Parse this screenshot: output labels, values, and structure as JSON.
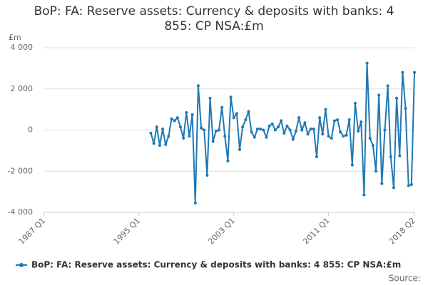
{
  "chart_data": {
    "type": "line",
    "title": "BoP: FA: Reserve assets: Currency & deposits with banks: 4 855: CP NSA:£m",
    "y_axis_label": "£m",
    "source": "Source:",
    "categories": [
      "1987 Q1",
      null,
      null,
      null,
      null,
      null,
      null,
      null,
      null,
      null,
      null,
      null,
      null,
      null,
      null,
      null,
      null,
      null,
      null,
      null,
      null,
      null,
      null,
      null,
      null,
      null,
      null,
      null,
      null,
      null,
      null,
      null,
      "1995 Q1",
      null,
      null,
      null,
      null,
      null,
      null,
      null,
      null,
      null,
      null,
      null,
      null,
      null,
      null,
      null,
      null,
      null,
      null,
      null,
      null,
      null,
      null,
      null,
      null,
      null,
      null,
      null,
      null,
      null,
      null,
      null,
      "2003 Q1",
      null,
      null,
      null,
      null,
      null,
      null,
      null,
      null,
      null,
      null,
      null,
      null,
      null,
      null,
      null,
      null,
      null,
      null,
      null,
      null,
      null,
      null,
      null,
      null,
      null,
      null,
      null,
      null,
      null,
      null,
      null,
      "2011 Q1",
      null,
      null,
      null,
      null,
      null,
      null,
      null,
      null,
      null,
      null,
      null,
      null,
      null,
      null,
      null,
      null,
      null,
      null,
      null,
      null,
      null,
      null,
      null,
      null,
      null,
      null,
      null,
      null,
      "2018 Q2"
    ],
    "series": [
      {
        "name": "BoP: FA: Reserve assets: Currency & deposits with banks: 4 855: CP NSA:£m",
        "color": "#1f78b4",
        "values": [
          null,
          null,
          null,
          null,
          null,
          null,
          null,
          null,
          null,
          null,
          null,
          null,
          null,
          null,
          null,
          null,
          null,
          null,
          null,
          null,
          null,
          null,
          null,
          null,
          null,
          null,
          null,
          null,
          null,
          null,
          null,
          null,
          null,
          null,
          null,
          null,
          -150,
          -650,
          150,
          -750,
          50,
          -700,
          -300,
          550,
          450,
          600,
          150,
          -400,
          850,
          -300,
          750,
          -3550,
          2150,
          100,
          0,
          -2200,
          1550,
          -550,
          -50,
          0,
          1100,
          -300,
          -1500,
          1600,
          600,
          800,
          -950,
          150,
          500,
          900,
          -100,
          -350,
          50,
          50,
          0,
          -350,
          200,
          300,
          0,
          150,
          450,
          -150,
          200,
          0,
          -450,
          -50,
          600,
          0,
          350,
          -200,
          50,
          50,
          -1300,
          600,
          -200,
          1000,
          -300,
          -400,
          450,
          500,
          -100,
          -300,
          -250,
          500,
          -1700,
          1300,
          -50,
          400,
          -3150,
          3250,
          -400,
          -750,
          -2000,
          1700,
          -2600,
          0,
          2150,
          -1300,
          -2800,
          1550,
          -1250,
          2800,
          1050,
          -2700,
          -2650,
          2800
        ]
      }
    ],
    "ylim": [
      -4000,
      4000
    ],
    "yticks": [
      {
        "value": -4000,
        "label": "-4 000"
      },
      {
        "value": -2000,
        "label": "-2 000"
      },
      0,
      {
        "value": 2000,
        "label": "2 000"
      },
      {
        "value": 4000,
        "label": "4 000"
      }
    ],
    "grid": true,
    "legend": "bottom",
    "markers": true
  }
}
